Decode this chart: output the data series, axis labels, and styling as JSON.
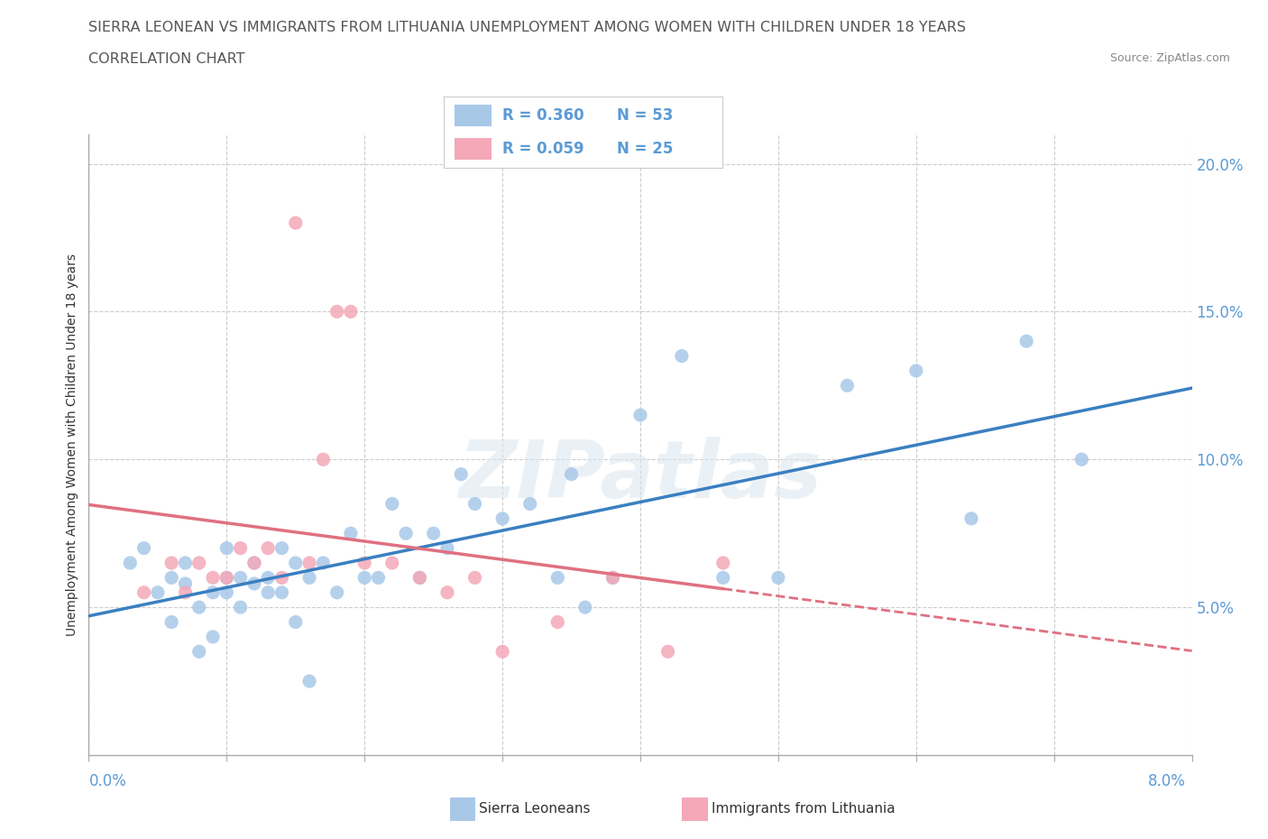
{
  "title_line1": "SIERRA LEONEAN VS IMMIGRANTS FROM LITHUANIA UNEMPLOYMENT AMONG WOMEN WITH CHILDREN UNDER 18 YEARS",
  "title_line2": "CORRELATION CHART",
  "source": "Source: ZipAtlas.com",
  "ylabel": "Unemployment Among Women with Children Under 18 years",
  "xmin": 0.0,
  "xmax": 0.08,
  "ymin": 0.0,
  "ymax": 0.21,
  "yticks": [
    0.05,
    0.1,
    0.15,
    0.2
  ],
  "ytick_labels": [
    "5.0%",
    "10.0%",
    "15.0%",
    "20.0%"
  ],
  "xtick_start": "0.0%",
  "xtick_end": "8.0%",
  "color_sierra": "#a8c8e8",
  "color_lithuania": "#f4a8b8",
  "color_trend_sierra": "#3a7fc1",
  "color_trend_lithuania": "#e07080",
  "watermark_text": "ZIPatlas",
  "legend_r1": "R = 0.360",
  "legend_n1": "N = 53",
  "legend_r2": "R = 0.059",
  "legend_n2": "N = 25",
  "legend_label1": "Sierra Leoneans",
  "legend_label2": "Immigrants from Lithuania",
  "sierra_x": [
    0.003,
    0.004,
    0.005,
    0.006,
    0.006,
    0.007,
    0.007,
    0.008,
    0.008,
    0.009,
    0.009,
    0.01,
    0.01,
    0.01,
    0.011,
    0.011,
    0.012,
    0.012,
    0.013,
    0.013,
    0.014,
    0.014,
    0.015,
    0.015,
    0.016,
    0.016,
    0.017,
    0.018,
    0.019,
    0.02,
    0.021,
    0.022,
    0.023,
    0.024,
    0.025,
    0.026,
    0.027,
    0.028,
    0.03,
    0.032,
    0.034,
    0.035,
    0.036,
    0.038,
    0.04,
    0.043,
    0.046,
    0.05,
    0.055,
    0.06,
    0.064,
    0.068,
    0.072
  ],
  "sierra_y": [
    0.065,
    0.07,
    0.055,
    0.06,
    0.045,
    0.065,
    0.058,
    0.05,
    0.035,
    0.04,
    0.055,
    0.06,
    0.055,
    0.07,
    0.06,
    0.05,
    0.065,
    0.058,
    0.055,
    0.06,
    0.07,
    0.055,
    0.065,
    0.045,
    0.06,
    0.025,
    0.065,
    0.055,
    0.075,
    0.06,
    0.06,
    0.085,
    0.075,
    0.06,
    0.075,
    0.07,
    0.095,
    0.085,
    0.08,
    0.085,
    0.06,
    0.095,
    0.05,
    0.06,
    0.115,
    0.135,
    0.06,
    0.06,
    0.125,
    0.13,
    0.08,
    0.14,
    0.1
  ],
  "lithuania_x": [
    0.004,
    0.006,
    0.007,
    0.008,
    0.009,
    0.01,
    0.011,
    0.012,
    0.013,
    0.014,
    0.015,
    0.016,
    0.017,
    0.018,
    0.019,
    0.02,
    0.022,
    0.024,
    0.026,
    0.028,
    0.03,
    0.034,
    0.038,
    0.042,
    0.046
  ],
  "lithuania_y": [
    0.055,
    0.065,
    0.055,
    0.065,
    0.06,
    0.06,
    0.07,
    0.065,
    0.07,
    0.06,
    0.18,
    0.065,
    0.1,
    0.15,
    0.15,
    0.065,
    0.065,
    0.06,
    0.055,
    0.06,
    0.035,
    0.045,
    0.06,
    0.035,
    0.065
  ]
}
